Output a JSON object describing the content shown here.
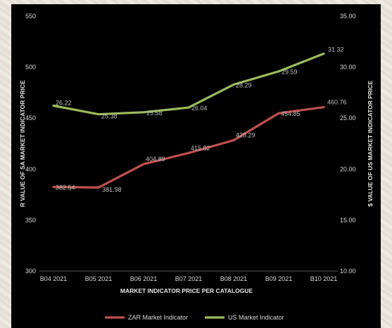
{
  "chart_data": {
    "type": "line",
    "categories": [
      "B04 2021",
      "B05 2021",
      "B06 2021",
      "B07 2021",
      "B08 2021",
      "B09 2021",
      "B10 2021"
    ],
    "series": [
      {
        "name": "ZAR Market Indicator",
        "axis": "left",
        "color": "#c0504d",
        "values": [
          382.54,
          381.98,
          404.89,
          415.82,
          428.29,
          454.85,
          460.76
        ],
        "labels": [
          "382.54",
          "381.98",
          "404.89",
          "415.82",
          "428.29",
          "454.85",
          "460.76"
        ]
      },
      {
        "name": "US Market Indicator",
        "axis": "right",
        "color": "#9bbb59",
        "values": [
          26.22,
          25.38,
          25.58,
          26.04,
          28.29,
          29.59,
          31.32
        ],
        "labels": [
          "26.22",
          "25.38",
          "25.58",
          "26.04",
          "28.29",
          "29.59",
          "31.32"
        ]
      }
    ],
    "xlabel": "MARKET INDICATOR PRICE PER CATALOGUE",
    "ylabel": "R VALUE OF SA MARKET INDICATOR PRICE",
    "y2label": "$ VALUE OF US MARKET INDICATOR PRICE",
    "ylim": [
      300,
      550
    ],
    "y2lim": [
      10,
      35
    ],
    "yticks": [
      "300",
      "350",
      "400",
      "450",
      "500",
      "550"
    ],
    "y2ticks": [
      "10.00",
      "15.00",
      "20.00",
      "25.00",
      "30.00",
      "35.00"
    ],
    "grid": false,
    "legend_position": "bottom"
  }
}
